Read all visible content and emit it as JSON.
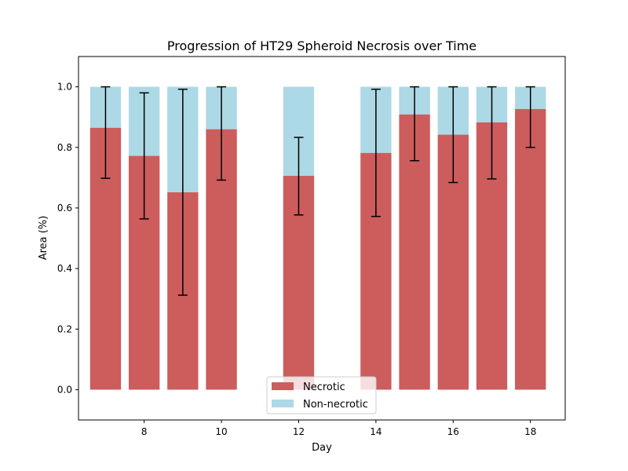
{
  "chart_data": {
    "type": "bar",
    "stacked": true,
    "title": "Progression of HT29 Spheroid Necrosis over Time",
    "xlabel": "Day",
    "ylabel": "Area (%)",
    "xlim": [
      6.3,
      18.9
    ],
    "ylim": [
      -0.1,
      1.1
    ],
    "x": [
      7,
      8,
      9,
      10,
      12,
      14,
      15,
      16,
      17,
      18
    ],
    "xticks": [
      8,
      10,
      12,
      14,
      16,
      18
    ],
    "yticks": [
      0.0,
      0.2,
      0.4,
      0.6,
      0.8,
      1.0
    ],
    "xtick_labels": [
      "8",
      "10",
      "12",
      "14",
      "16",
      "18"
    ],
    "ytick_labels": [
      "0.0",
      "0.2",
      "0.4",
      "0.6",
      "0.8",
      "1.0"
    ],
    "series": [
      {
        "name": "Necrotic",
        "color": "#cd5c5c",
        "values": [
          0.865,
          0.772,
          0.652,
          0.86,
          0.706,
          0.782,
          0.909,
          0.842,
          0.883,
          0.927
        ],
        "error_low": [
          0.698,
          0.564,
          0.312,
          0.692,
          0.577,
          0.572,
          0.756,
          0.684,
          0.696,
          0.8
        ],
        "error_high": [
          1.0,
          0.98,
          0.992,
          1.0,
          0.833,
          0.992,
          1.0,
          1.0,
          1.0,
          1.0
        ]
      },
      {
        "name": "Non-necrotic",
        "color": "#add8e6",
        "values": [
          0.135,
          0.228,
          0.348,
          0.14,
          0.294,
          0.218,
          0.091,
          0.158,
          0.117,
          0.073
        ]
      }
    ],
    "bar_width": 0.8,
    "grid": false,
    "legend_position": "lower center"
  }
}
